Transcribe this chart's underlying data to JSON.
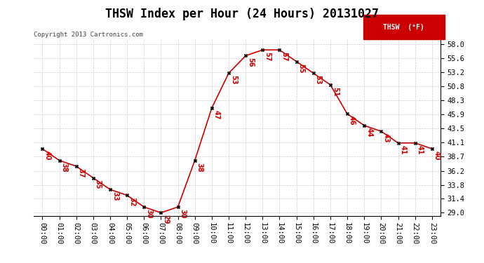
{
  "title": "THSW Index per Hour (24 Hours) 20131027",
  "copyright": "Copyright 2013 Cartronics.com",
  "legend_label": "THSW  (°F)",
  "hours": [
    0,
    1,
    2,
    3,
    4,
    5,
    6,
    7,
    8,
    9,
    10,
    11,
    12,
    13,
    14,
    15,
    16,
    17,
    18,
    19,
    20,
    21,
    22,
    23
  ],
  "values": [
    40,
    38,
    37,
    35,
    33,
    32,
    30,
    29,
    30,
    38,
    47,
    53,
    56,
    57,
    57,
    55,
    53,
    51,
    46,
    44,
    43,
    41,
    41,
    40
  ],
  "x_labels": [
    "00:00",
    "01:00",
    "02:00",
    "03:00",
    "04:00",
    "05:00",
    "06:00",
    "07:00",
    "08:00",
    "09:00",
    "10:00",
    "11:00",
    "12:00",
    "13:00",
    "14:00",
    "15:00",
    "16:00",
    "17:00",
    "18:00",
    "19:00",
    "20:00",
    "21:00",
    "22:00",
    "23:00"
  ],
  "y_ticks": [
    29.0,
    31.4,
    33.8,
    36.2,
    38.7,
    41.1,
    43.5,
    45.9,
    48.3,
    50.8,
    53.2,
    55.6,
    58.0
  ],
  "ylim": [
    28.5,
    58.8
  ],
  "line_color": "#cc0000",
  "marker_color": "#000000",
  "grid_color": "#cccccc",
  "background_color": "#ffffff",
  "title_fontsize": 12,
  "label_fontsize": 7.5,
  "annotation_fontsize": 7,
  "legend_bg": "#cc0000",
  "legend_text_color": "#ffffff"
}
